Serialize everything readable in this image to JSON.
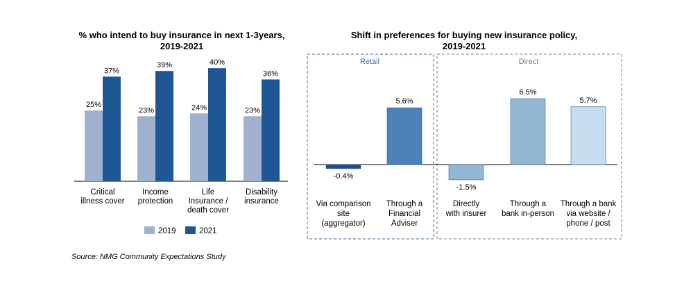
{
  "chart_data": [
    {
      "type": "bar",
      "title": [
        "% who intend to buy insurance in next 1-3years,",
        "2019-2021"
      ],
      "categories": [
        [
          "Critical",
          "illness cover"
        ],
        [
          "Income",
          "protection"
        ],
        [
          "Life",
          "Insurance /",
          "death cover"
        ],
        [
          "Disability",
          "insurance"
        ]
      ],
      "series": [
        {
          "name": "2019",
          "color": "#9fb1cf",
          "values": [
            25,
            23,
            24,
            23
          ],
          "labels": [
            "25%",
            "23%",
            "24%",
            "23%"
          ]
        },
        {
          "name": "2021",
          "color": "#1f5696",
          "values": [
            37,
            39,
            40,
            36
          ],
          "labels": [
            "37%",
            "39%",
            "40%",
            "36%"
          ]
        }
      ],
      "legend_placement": "bottom",
      "ylim": [
        0,
        42
      ],
      "grid": false
    },
    {
      "type": "bar",
      "title": [
        "Shift in preferences for buying new insurance policy,",
        "2019-2021"
      ],
      "groups": [
        {
          "label": "Retail",
          "color": "#3f6b9c"
        },
        {
          "label": "Direct",
          "color": "#7f7f7f"
        }
      ],
      "categories": [
        [
          "Via comparison",
          "site",
          "(aggregator)"
        ],
        [
          "Through a",
          "Financial",
          "Adviser"
        ],
        [
          "Directly",
          "with insurer"
        ],
        [
          "Through a",
          "bank in-person"
        ],
        [
          "Through a bank",
          "via website /",
          "phone / post"
        ]
      ],
      "values": [
        -0.4,
        5.6,
        -1.5,
        6.5,
        5.7
      ],
      "labels": [
        "-0.4%",
        "5.6%",
        "-1.5%",
        "6.5%",
        "5.7%"
      ],
      "colors": [
        "#1f4e8c",
        "#4f81b9",
        "#93b8d3",
        "#93b8d3",
        "#c5ddee"
      ],
      "ylim": [
        -1.6,
        6.8
      ],
      "grid": false
    }
  ],
  "source": "Source: NMG Community Expectations Study"
}
